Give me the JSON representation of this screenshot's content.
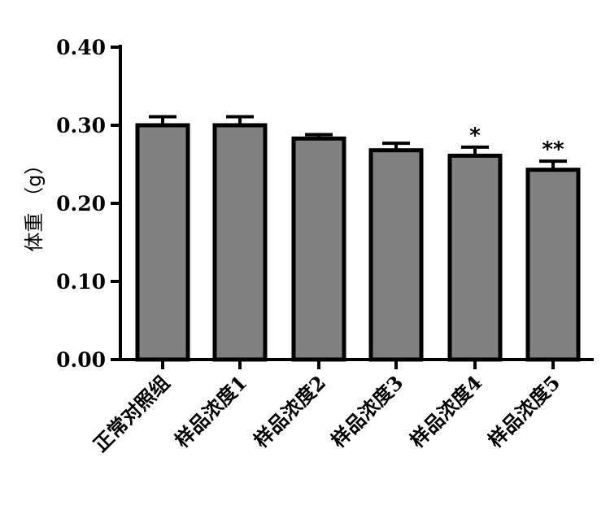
{
  "chart_data": {
    "type": "bar",
    "title": "",
    "xlabel": "",
    "ylabel": "体重  （g）",
    "ylim": [
      0,
      0.4
    ],
    "yticks": [
      "0.00",
      "0.10",
      "0.20",
      "0.30",
      "0.40"
    ],
    "categories": [
      "正常对照组",
      "样品浓度1",
      "样品浓度2",
      "样品浓度3",
      "样品浓度4",
      "样品浓度5"
    ],
    "values": [
      0.3,
      0.3,
      0.283,
      0.268,
      0.261,
      0.243
    ],
    "errors": [
      0.011,
      0.011,
      0.005,
      0.009,
      0.011,
      0.011
    ],
    "significance": [
      "",
      "",
      "",
      "",
      "*",
      "**"
    ],
    "bar_color": "#808080",
    "grid": false,
    "legend": "none"
  }
}
